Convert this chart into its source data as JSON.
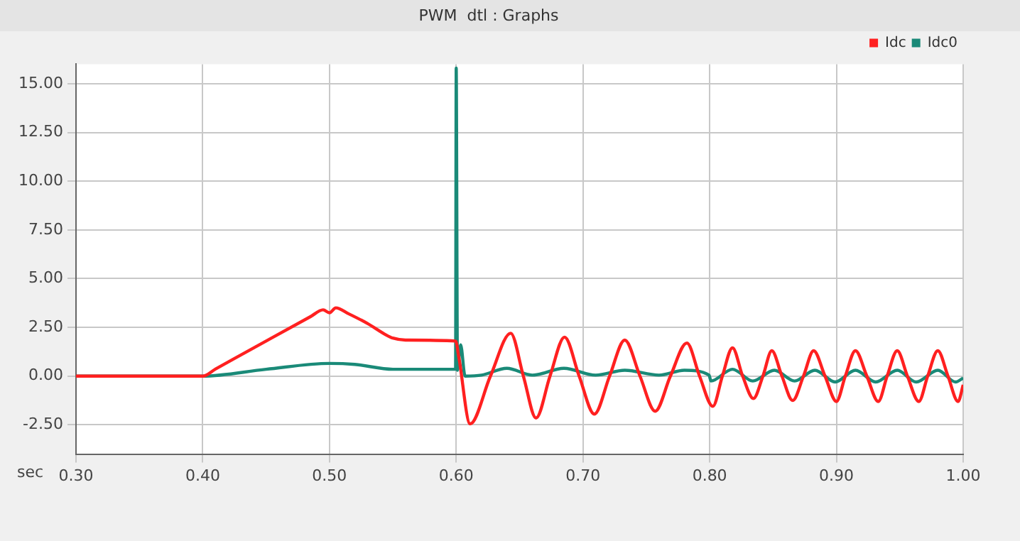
{
  "chart_data": {
    "type": "line",
    "title": "PWM  dtl : Graphs",
    "xlabel": "sec",
    "xlim": [
      0.3,
      1.0
    ],
    "xticks": [
      {
        "value": 0.3,
        "label": "0.30"
      },
      {
        "value": 0.4,
        "label": "0.40"
      },
      {
        "value": 0.5,
        "label": "0.50"
      },
      {
        "value": 0.6,
        "label": "0.60"
      },
      {
        "value": 0.7,
        "label": "0.70"
      },
      {
        "value": 0.8,
        "label": "0.80"
      },
      {
        "value": 0.9,
        "label": "0.90"
      },
      {
        "value": 1.0,
        "label": "1.00"
      }
    ],
    "ylim": [
      -4,
      16
    ],
    "yticks": [
      {
        "value": -2.5,
        "label": "-2.50"
      },
      {
        "value": 0,
        "label": "0.00"
      },
      {
        "value": 2.5,
        "label": "2.50"
      },
      {
        "value": 5,
        "label": "5.00"
      },
      {
        "value": 7.5,
        "label": "7.50"
      },
      {
        "value": 10,
        "label": "10.00"
      },
      {
        "value": 12.5,
        "label": "12.50"
      },
      {
        "value": 15,
        "label": "15.00"
      }
    ],
    "grid": true,
    "legend": "top right",
    "marker": "none",
    "line_style": "solid",
    "series": [
      {
        "name": "Idc",
        "color": "#ff2020",
        "x": [
          0.3,
          0.4,
          0.41,
          0.45,
          0.485,
          0.495,
          0.5,
          0.505,
          0.515,
          0.53,
          0.545,
          0.55,
          0.56,
          0.5995,
          0.602,
          0.611,
          0.627,
          0.643,
          0.653,
          0.663,
          0.674,
          0.6855,
          0.697,
          0.709,
          0.721,
          0.733,
          0.745,
          0.757,
          0.769,
          0.782,
          0.792,
          0.8025,
          0.81,
          0.818,
          0.826,
          0.8345,
          0.842,
          0.849,
          0.857,
          0.8655,
          0.874,
          0.882,
          0.891,
          0.9,
          0.907,
          0.915,
          0.924,
          0.933,
          0.94,
          0.948,
          0.956,
          0.965,
          0.972,
          0.98,
          0.988,
          0.996,
          1.0
        ],
        "values": [
          0,
          0,
          0.36,
          1.8,
          3.05,
          3.4,
          3.25,
          3.5,
          3.2,
          2.7,
          2.1,
          1.95,
          1.85,
          1.8,
          1.0,
          -2.45,
          0,
          2.2,
          0,
          -2.15,
          0,
          2.0,
          0,
          -1.95,
          0,
          1.85,
          0,
          -1.8,
          0,
          1.7,
          0,
          -1.55,
          0,
          1.45,
          0,
          -1.15,
          0,
          1.3,
          0,
          -1.25,
          0,
          1.3,
          0,
          -1.3,
          0,
          1.3,
          0,
          -1.3,
          0,
          1.3,
          0,
          -1.3,
          0,
          1.3,
          0,
          -1.3,
          -0.45
        ]
      },
      {
        "name": "Idc0",
        "color": "#1a8a78",
        "x": [
          0.3,
          0.4,
          0.45,
          0.5,
          0.52,
          0.55,
          0.5995,
          0.6,
          0.601,
          0.6035,
          0.607,
          0.62,
          0.64,
          0.66,
          0.685,
          0.71,
          0.733,
          0.76,
          0.78,
          0.7995,
          0.801,
          0.818,
          0.834,
          0.851,
          0.867,
          0.883,
          0.899,
          0.915,
          0.931,
          0.948,
          0.963,
          0.98,
          0.994,
          1.0
        ],
        "values": [
          0,
          0,
          0.35,
          0.65,
          0.6,
          0.35,
          0.35,
          15.8,
          0.3,
          1.6,
          0,
          0.05,
          0.4,
          0.05,
          0.4,
          0.05,
          0.3,
          0.05,
          0.3,
          0.05,
          -0.25,
          0.35,
          -0.25,
          0.3,
          -0.25,
          0.3,
          -0.3,
          0.3,
          -0.3,
          0.3,
          -0.3,
          0.3,
          -0.3,
          -0.1
        ]
      }
    ]
  }
}
